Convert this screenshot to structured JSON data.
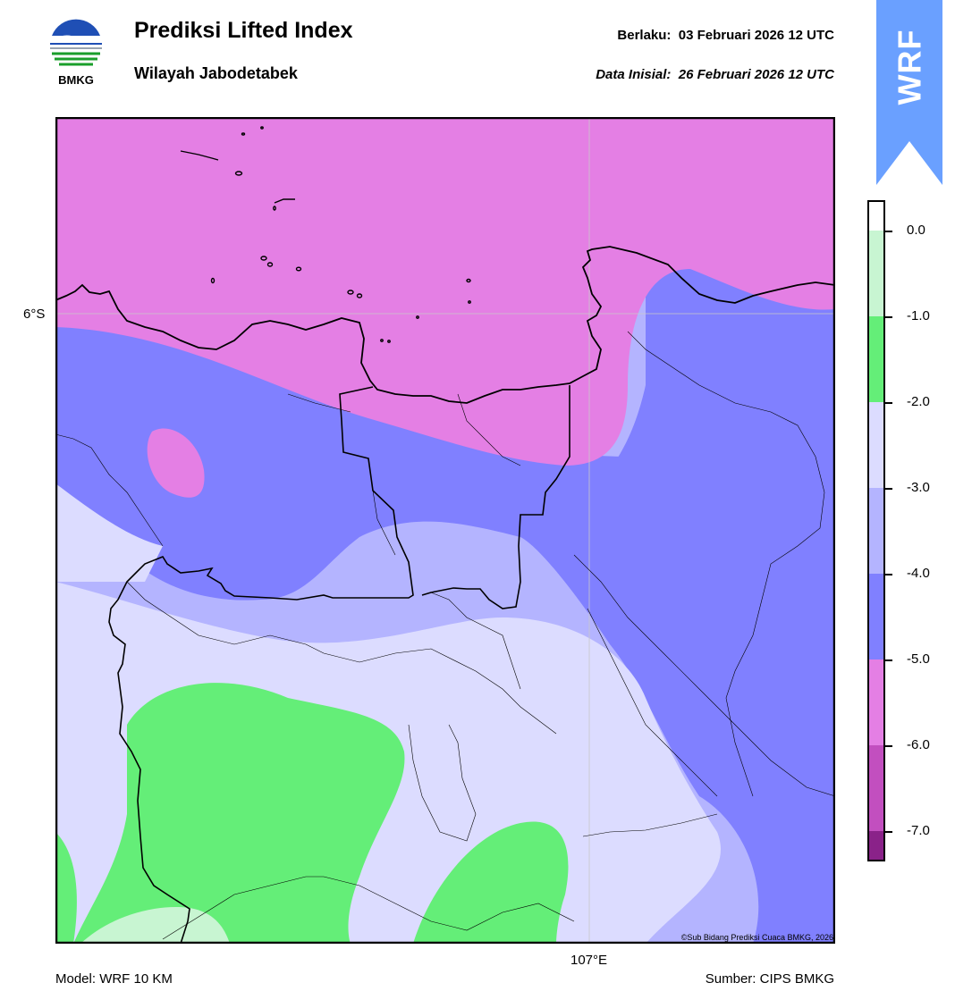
{
  "header": {
    "logo_text": "BMKG",
    "title": "Prediksi Lifted Index",
    "subtitle": "Wilayah Jabodetabek",
    "valid_time": "Berlaku:  03 Februari 2026 12 UTC",
    "init_time": "Data Inisial:  26 Februari 2026 12 UTC",
    "badge": "WRF"
  },
  "map": {
    "lat_label": "6°S",
    "lon_label": "107°E",
    "copyright": "©Sub Bidang Prediksi Cuaca BMKG, 2026"
  },
  "colorbar": {
    "ticks": [
      "0.0",
      "-1.0",
      "-2.0",
      "-3.0",
      "-4.0",
      "-5.0",
      "-6.0",
      "-7.0"
    ],
    "colors": {
      "above_0": "#ffffff",
      "0_to_-1": "#c8f5d2",
      "-1_to_-2": "#64ee78",
      "-2_to_-3": "#dcdcff",
      "-3_to_-4": "#b4b4ff",
      "-4_to_-5": "#8080ff",
      "-5_to_-6": "#e47fe4",
      "-6_to_-7": "#c24fbf",
      "below_-7": "#8a2289"
    }
  },
  "footer": {
    "model": "Model: WRF 10 KM",
    "source": "Sumber: CIPS BMKG"
  }
}
